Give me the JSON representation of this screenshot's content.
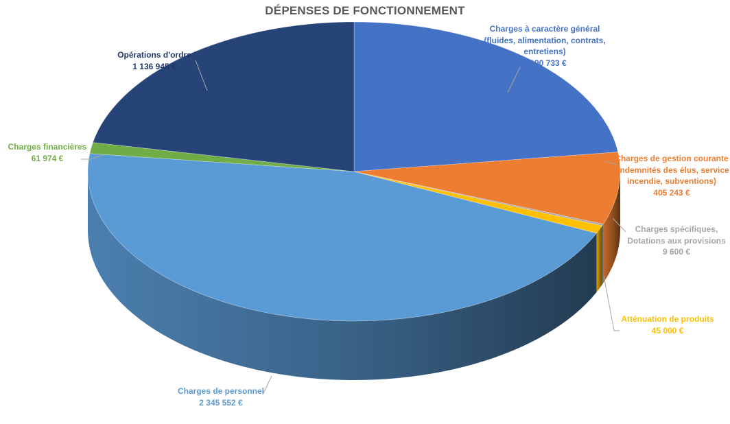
{
  "chart_data": {
    "type": "pie",
    "title": "DÉPENSES DE FONCTIONNEMENT",
    "slices": [
      {
        "lines": [
          "Charges à caractère général",
          "(fluides, alimentation, contrats,",
          "entretiens)"
        ],
        "value": 1190733,
        "value_label": "1 190 733 €",
        "color": "#4472C4"
      },
      {
        "lines": [
          "Charges de gestion courante",
          "(indemnités des élus, service",
          "incendie, subventions)"
        ],
        "value": 405243,
        "value_label": "405 243 €",
        "color": "#ED7D31"
      },
      {
        "lines": [
          "Charges spécifiques,",
          "Dotations aux provisions"
        ],
        "value": 9600,
        "value_label": "9 600 €",
        "color": "#A5A5A5"
      },
      {
        "lines": [
          "Atténuation de produits"
        ],
        "value": 45000,
        "value_label": "45 000 €",
        "color": "#FFC000"
      },
      {
        "lines": [
          "Charges de personnel"
        ],
        "value": 2345552,
        "value_label": "2 345 552 €",
        "color": "#5B9BD5"
      },
      {
        "lines": [
          "Charges financières"
        ],
        "value": 61974,
        "value_label": "61 974 €",
        "color": "#70AD47"
      },
      {
        "lines": [
          "Opérations d'ordre"
        ],
        "value": 1136945,
        "value_label": "1 136 945 €",
        "color": "#264478"
      }
    ]
  }
}
